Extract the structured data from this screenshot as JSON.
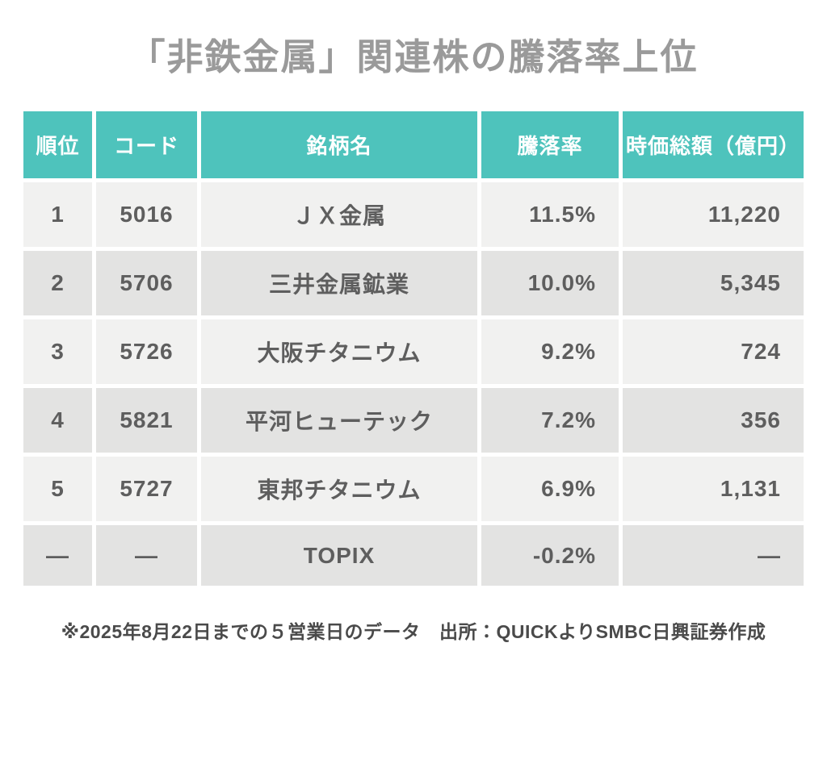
{
  "page": {
    "title": "「非鉄金属」関連株の騰落率上位",
    "footnote": "※2025年8月22日までの５営業日のデータ　出所：QUICKよりSMBC日興証券作成"
  },
  "table": {
    "columns": [
      "順位",
      "コード",
      "銘柄名",
      "騰落率",
      "時価総額（億円）"
    ],
    "rows": [
      {
        "rank": "1",
        "code": "5016",
        "name": "ＪＸ金属",
        "change": "11.5%",
        "market_cap": "11,220"
      },
      {
        "rank": "2",
        "code": "5706",
        "name": "三井金属鉱業",
        "change": "10.0%",
        "market_cap": "5,345"
      },
      {
        "rank": "3",
        "code": "5726",
        "name": "大阪チタニウム",
        "change": "9.2%",
        "market_cap": "724"
      },
      {
        "rank": "4",
        "code": "5821",
        "name": "平河ヒューテック",
        "change": "7.2%",
        "market_cap": "356"
      },
      {
        "rank": "5",
        "code": "5727",
        "name": "東邦チタニウム",
        "change": "6.9%",
        "market_cap": "1,131"
      },
      {
        "rank": "—",
        "code": "—",
        "name": "TOPIX",
        "change": "-0.2%",
        "market_cap": "—"
      }
    ]
  },
  "colors": {
    "header_bg": "#4ec3bc",
    "row_odd_bg": "#f1f1f0",
    "row_even_bg": "#e3e3e2",
    "title_color": "#9a9a9a",
    "cell_text": "#5e5e5e",
    "header_text": "#ffffff",
    "footnote_color": "#4a4a4a"
  },
  "chart_data": {
    "type": "table",
    "title": "「非鉄金属」関連株の騰落率上位",
    "columns": [
      "順位",
      "コード",
      "銘柄名",
      "騰落率",
      "時価総額（億円）"
    ],
    "rows": [
      [
        "1",
        "5016",
        "ＪＸ金属",
        "11.5%",
        "11,220"
      ],
      [
        "2",
        "5706",
        "三井金属鉱業",
        "10.0%",
        "5,345"
      ],
      [
        "3",
        "5726",
        "大阪チタニウム",
        "9.2%",
        "724"
      ],
      [
        "4",
        "5821",
        "平河ヒューテック",
        "7.2%",
        "356"
      ],
      [
        "5",
        "5727",
        "東邦チタニウム",
        "6.9%",
        "1,131"
      ],
      [
        "—",
        "—",
        "TOPIX",
        "-0.2%",
        "—"
      ]
    ],
    "change_rate_values_percent": [
      11.5,
      10.0,
      9.2,
      7.2,
      6.9,
      -0.2
    ],
    "market_cap_oku_yen": [
      11220,
      5345,
      724,
      356,
      1131,
      null
    ],
    "footnote": "※2025年8月22日までの５営業日のデータ　出所：QUICKよりSMBC日興証券作成"
  }
}
